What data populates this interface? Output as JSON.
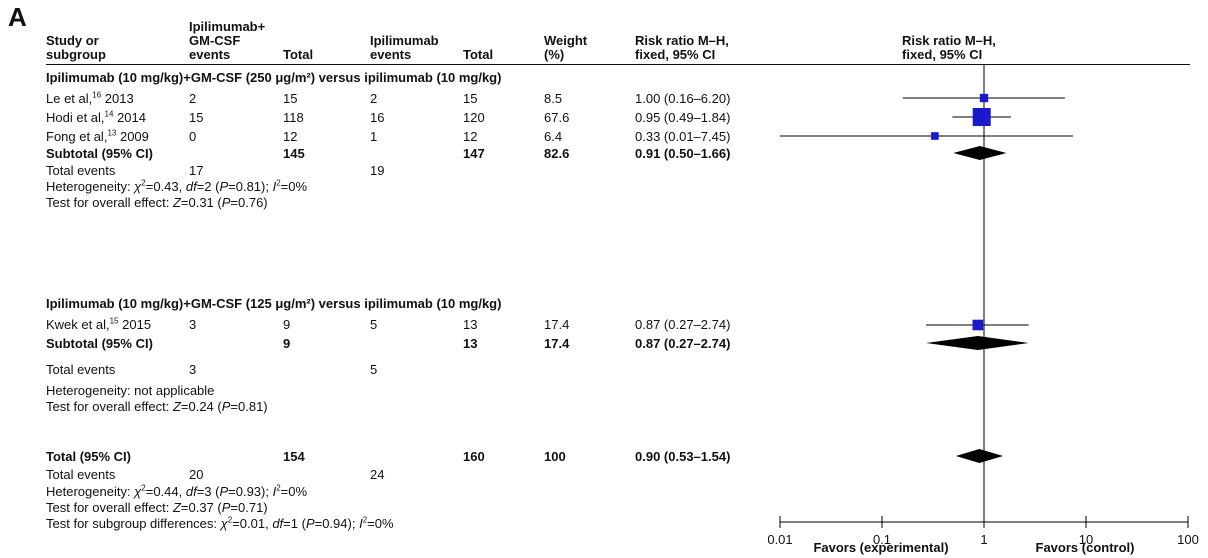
{
  "panel": "A",
  "columns": {
    "study": [
      "Study or",
      "subgroup"
    ],
    "exp_events": [
      "Ipilimumab+",
      "GM-CSF",
      "events"
    ],
    "exp_total": "Total",
    "ctl_events": [
      "Ipilimumab",
      "events"
    ],
    "ctl_total": "Total",
    "weight": [
      "Weight",
      "(%)"
    ],
    "rr": [
      "Risk ratio M–H,",
      "fixed, 95% CI"
    ],
    "plot_header": [
      "Risk ratio M–H,",
      "fixed, 95% CI"
    ]
  },
  "subgroup1": {
    "title": "Ipilimumab (10 mg/kg)+GM-CSF (250 μg/m²) versus ipilimumab (10 mg/kg)",
    "studies": [
      {
        "author": "Le et al,",
        "ref": "16",
        "year": "2013",
        "e_events": "2",
        "e_total": "15",
        "c_events": "2",
        "c_total": "15",
        "weight": "8.5",
        "rr": "1.00 (0.16–6.20)"
      },
      {
        "author": "Hodi et al,",
        "ref": "14",
        "year": "2014",
        "e_events": "15",
        "e_total": "118",
        "c_events": "16",
        "c_total": "120",
        "weight": "67.6",
        "rr": "0.95 (0.49–1.84)"
      },
      {
        "author": "Fong et al,",
        "ref": "13",
        "year": "2009",
        "e_events": "0",
        "e_total": "12",
        "c_events": "1",
        "c_total": "12",
        "weight": "6.4",
        "rr": "0.33 (0.01–7.45)"
      }
    ],
    "subtotal": {
      "label": "Subtotal (95% CI)",
      "e_total": "145",
      "c_total": "147",
      "weight": "82.6",
      "rr": "0.91 (0.50–1.66)"
    },
    "events": {
      "label": "Total events",
      "e": "17",
      "c": "19"
    },
    "het": {
      "pre": "Heterogeneity: ",
      "chi_sym": "χ",
      "chi_val": "=0.43, ",
      "df_sym": "df",
      "df_val": "=2 (",
      "p_sym": "P",
      "p_val": "=0.81); ",
      "i_sym": "I",
      "i_val": "=0%"
    },
    "effect": {
      "pre": "Test for overall effect: ",
      "z_sym": "Z",
      "z_val": "=0.31 (",
      "p_sym": "P",
      "p_val": "=0.76)"
    }
  },
  "subgroup2": {
    "title": "Ipilimumab (10 mg/kg)+GM-CSF (125 μg/m²) versus ipilimumab (10 mg/kg)",
    "studies": [
      {
        "author": "Kwek et al,",
        "ref": "15",
        "year": "2015",
        "e_events": "3",
        "e_total": "9",
        "c_events": "5",
        "c_total": "13",
        "weight": "17.4",
        "rr": "0.87 (0.27–2.74)"
      }
    ],
    "subtotal": {
      "label": "Subtotal (95% CI)",
      "e_total": "9",
      "c_total": "13",
      "weight": "17.4",
      "rr": "0.87 (0.27–2.74)"
    },
    "events": {
      "label": "Total events",
      "e": "3",
      "c": "5"
    },
    "het": "Heterogeneity: not applicable",
    "effect": {
      "pre": "Test for overall effect: ",
      "z_sym": "Z",
      "z_val": "=0.24 (",
      "p_sym": "P",
      "p_val": "=0.81)"
    }
  },
  "overall": {
    "total": {
      "label": "Total (95% CI)",
      "e_total": "154",
      "c_total": "160",
      "weight": "100",
      "rr": "0.90 (0.53–1.54)"
    },
    "events": {
      "label": "Total events",
      "e": "20",
      "c": "24"
    },
    "het": {
      "pre": "Heterogeneity: ",
      "chi_sym": "χ",
      "chi_val": "=0.44, ",
      "df_sym": "df",
      "df_val": "=3 (",
      "p_sym": "P",
      "p_val": "=0.93); ",
      "i_sym": "I",
      "i_val": "=0%"
    },
    "effect": {
      "pre": "Test for overall effect: ",
      "z_sym": "Z",
      "z_val": "=0.37 (",
      "p_sym": "P",
      "p_val": "=0.71)"
    },
    "subgroup_diff": {
      "pre": "Test for subgroup differences: ",
      "chi_sym": "χ",
      "chi_val": "=0.01, ",
      "df_sym": "df",
      "df_val": "=1 (",
      "p_sym": "P",
      "p_val": "=0.94); ",
      "i_sym": "I",
      "i_val": "=0%"
    }
  },
  "chart_data": {
    "type": "scatter",
    "subtype": "forest-plot",
    "x_scale": "log",
    "xlim": [
      0.01,
      100
    ],
    "ticks": [
      "0.01",
      "0.1",
      "1",
      "10",
      "100"
    ],
    "reference_line": 1,
    "favors_left": "Favors (experimental)",
    "favors_right": "Favors (control)",
    "studies": [
      {
        "label": "Le et al, 2013",
        "est": 1.0,
        "lo": 0.16,
        "hi": 6.2,
        "weight": 8.5
      },
      {
        "label": "Hodi et al, 2014",
        "est": 0.95,
        "lo": 0.49,
        "hi": 1.84,
        "weight": 67.6
      },
      {
        "label": "Fong et al, 2009",
        "est": 0.33,
        "lo": 0.01,
        "hi": 7.45,
        "weight": 6.4
      },
      {
        "label": "Kwek et al, 2015",
        "est": 0.87,
        "lo": 0.27,
        "hi": 2.74,
        "weight": 17.4
      }
    ],
    "diamonds": [
      {
        "label": "Subtotal (95% CI)",
        "est": 0.91,
        "lo": 0.5,
        "hi": 1.66
      },
      {
        "label": "Subtotal (95% CI)",
        "est": 0.87,
        "lo": 0.27,
        "hi": 2.74
      },
      {
        "label": "Total (95% CI)",
        "est": 0.9,
        "lo": 0.53,
        "hi": 1.54
      }
    ],
    "colors": {
      "marker": "#1a1acc",
      "line": "#000000"
    }
  }
}
